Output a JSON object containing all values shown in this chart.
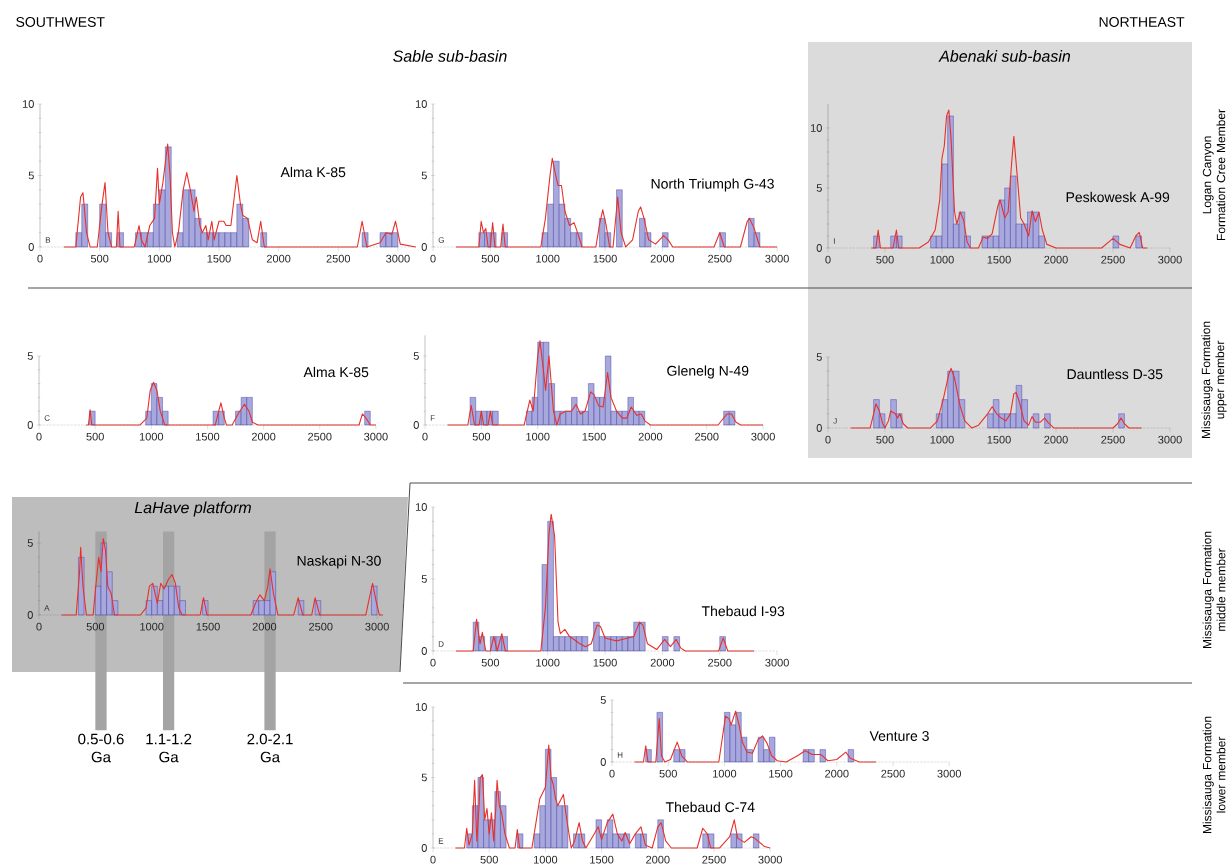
{
  "chart_data": [
    {
      "type": "bar",
      "title": "Alma K-85",
      "subtitle": "B",
      "annotations": [
        "SOUTHWEST",
        "Sable sub-basin"
      ],
      "xlim": [
        0,
        3150
      ],
      "xticks": [
        0,
        500,
        1000,
        1500,
        2000,
        2500,
        3000
      ],
      "ylim": [
        0,
        10
      ],
      "yticks": [
        0,
        5,
        10
      ],
      "series": [
        {
          "color": "#a8a8dc",
          "x": [
            325,
            375,
            525,
            575,
            675,
            825,
            875,
            925,
            975,
            1025,
            1075,
            1175,
            1225,
            1275,
            1325,
            1375,
            1425,
            1475,
            1525,
            1575,
            1625,
            1675,
            1725,
            1875,
            2725,
            2875,
            2925,
            2975
          ],
          "values": [
            1,
            3,
            3,
            1,
            1,
            1,
            1,
            1,
            3,
            4,
            7,
            1,
            4,
            4,
            2,
            1,
            1,
            1,
            1,
            1,
            1,
            3,
            2,
            1,
            1,
            1,
            1,
            1
          ]
        },
        {
          "type": "line",
          "color": "#e8302a",
          "x": [
            200,
            300,
            340,
            360,
            390,
            420,
            480,
            520,
            545,
            570,
            600,
            640,
            655,
            670,
            790,
            830,
            850,
            880,
            920,
            960,
            985,
            1000,
            1030,
            1070,
            1090,
            1110,
            1130,
            1160,
            1200,
            1230,
            1260,
            1290,
            1310,
            1340,
            1360,
            1390,
            1410,
            1440,
            1460,
            1500,
            1540,
            1560,
            1600,
            1650,
            1680,
            1700,
            1740,
            1780,
            1820,
            1850,
            1880,
            2660,
            2700,
            2740,
            2850,
            2900,
            2950,
            2980,
            3020,
            3150
          ],
          "values": [
            0,
            0,
            3.5,
            3.8,
            1,
            0,
            0,
            3,
            4.5,
            1,
            0,
            0,
            2.5,
            0,
            0,
            1.5,
            0.5,
            0,
            1.5,
            2,
            5.5,
            3,
            4.5,
            7.2,
            5,
            1,
            0,
            1,
            4,
            5.2,
            4,
            2.5,
            3.5,
            1.5,
            1,
            1.5,
            0.5,
            1.8,
            0.5,
            1.8,
            1.8,
            1.5,
            1.5,
            5,
            3,
            2.2,
            2,
            0.5,
            0.3,
            1.8,
            0,
            0,
            1.8,
            0,
            0.3,
            1,
            0.9,
            1.8,
            0.2,
            0
          ]
        }
      ]
    },
    {
      "type": "bar",
      "title": "North Triumph G-43",
      "subtitle": "G",
      "xlim": [
        0,
        3000
      ],
      "xticks": [
        0,
        500,
        1000,
        1500,
        2000,
        2500,
        3000
      ],
      "ylim": [
        0,
        10
      ],
      "yticks": [
        0,
        5,
        10
      ],
      "series": [
        {
          "color": "#a8a8dc",
          "x": [
            425,
            475,
            525,
            625,
            975,
            1025,
            1075,
            1125,
            1175,
            1225,
            1275,
            1475,
            1525,
            1625,
            1825,
            1875,
            2025,
            2525,
            2775,
            2825
          ],
          "values": [
            1,
            1,
            1,
            1,
            1,
            3,
            6,
            3,
            2,
            1,
            1,
            2,
            1,
            4,
            2,
            1,
            1,
            1,
            2,
            1
          ]
        },
        {
          "type": "line",
          "color": "#e8302a",
          "x": [
            200,
            400,
            420,
            440,
            460,
            480,
            500,
            520,
            540,
            590,
            610,
            630,
            940,
            980,
            1020,
            1040,
            1070,
            1090,
            1120,
            1150,
            1190,
            1230,
            1260,
            1300,
            1420,
            1450,
            1480,
            1510,
            1540,
            1570,
            1610,
            1640,
            1680,
            1740,
            1790,
            1810,
            1840,
            1880,
            1940,
            2010,
            2050,
            2090,
            2450,
            2500,
            2540,
            2680,
            2740,
            2760,
            2800,
            2850,
            3000
          ],
          "values": [
            0,
            0,
            1.8,
            1,
            1.3,
            0,
            0,
            1.7,
            0,
            0,
            1.6,
            0,
            0,
            2,
            5,
            6.2,
            5,
            4.3,
            4.3,
            2.5,
            1.5,
            1.7,
            1,
            0,
            0,
            1.5,
            2.6,
            1.5,
            0,
            0,
            3.5,
            1,
            0,
            0.5,
            2.5,
            2.8,
            2,
            0.5,
            0.2,
            0.8,
            0.5,
            0,
            0,
            1,
            0,
            0,
            1.8,
            2,
            1.3,
            0,
            0
          ]
        }
      ]
    },
    {
      "type": "bar",
      "title": "Peskowesk A-99",
      "subtitle": "I",
      "annotations": [
        "NORTHEAST",
        "Abenaki sub-basin",
        "Logan Canyon Formation Cree Member"
      ],
      "xlim": [
        0,
        3000
      ],
      "xticks": [
        0,
        500,
        1000,
        1500,
        2000,
        2500,
        3000
      ],
      "ylim": [
        0,
        12
      ],
      "yticks": [
        0,
        5,
        10
      ],
      "series": [
        {
          "color": "#a8a8dc",
          "x": [
            425,
            575,
            625,
            925,
            975,
            1025,
            1075,
            1125,
            1175,
            1225,
            1375,
            1425,
            1475,
            1525,
            1575,
            1625,
            1675,
            1725,
            1775,
            1825,
            1875,
            2525,
            2725
          ],
          "values": [
            1,
            1,
            1,
            1,
            1,
            7,
            11,
            2,
            3,
            1,
            1,
            1,
            1,
            4,
            5,
            6,
            2,
            2,
            3,
            3,
            1,
            1,
            1
          ]
        },
        {
          "type": "line",
          "color": "#e8302a",
          "x": [
            380,
            420,
            440,
            460,
            570,
            600,
            620,
            800,
            880,
            940,
            980,
            1000,
            1020,
            1040,
            1060,
            1080,
            1110,
            1130,
            1160,
            1190,
            1220,
            1250,
            1320,
            1360,
            1400,
            1440,
            1490,
            1510,
            1550,
            1580,
            1610,
            1630,
            1660,
            1690,
            1720,
            1760,
            1790,
            1820,
            1850,
            1880,
            1920,
            2000,
            2400,
            2500,
            2560,
            2650,
            2700,
            2730,
            2760,
            2800
          ],
          "values": [
            0,
            0,
            1.5,
            0,
            0,
            1.5,
            0,
            0,
            0.5,
            1.5,
            4,
            7.5,
            8.5,
            11,
            11.5,
            9,
            3,
            2,
            3,
            2.3,
            0.5,
            0,
            0,
            0.9,
            0.8,
            1.2,
            3.5,
            4,
            2.5,
            3,
            7,
            9.3,
            6,
            2.5,
            2,
            1,
            3.1,
            2.2,
            3,
            1.5,
            0.3,
            0,
            0,
            0.8,
            0.3,
            0,
            1,
            1.3,
            0,
            0
          ]
        }
      ]
    },
    {
      "type": "bar",
      "title": "Alma K-85",
      "subtitle": "C",
      "xlim": [
        0,
        3000
      ],
      "xticks": [
        0,
        500,
        1000,
        1500,
        2000,
        2500,
        3000
      ],
      "ylim": [
        0,
        5
      ],
      "yticks": [
        0,
        5
      ],
      "series": [
        {
          "color": "#a8a8dc",
          "x": [
            475,
            975,
            1025,
            1075,
            1125,
            1575,
            1625,
            1775,
            1825,
            1875,
            2925
          ],
          "values": [
            1,
            1,
            3,
            2,
            1,
            1,
            1,
            1,
            2,
            2,
            1
          ]
        },
        {
          "type": "line",
          "color": "#e8302a",
          "x": [
            420,
            440,
            455,
            470,
            900,
            960,
            990,
            1020,
            1050,
            1080,
            1120,
            1570,
            1600,
            1620,
            1650,
            1670,
            1720,
            1780,
            1830,
            1870,
            1900,
            1950,
            2850,
            2880,
            2920,
            2950,
            3000
          ],
          "values": [
            0,
            0,
            1.1,
            0,
            0,
            0.5,
            2.5,
            3.1,
            2.5,
            1,
            0,
            0,
            1,
            1.6,
            0.5,
            0,
            0,
            0.9,
            1.5,
            1,
            0.2,
            0,
            0,
            0.8,
            0.4,
            0,
            0
          ]
        }
      ]
    },
    {
      "type": "bar",
      "title": "Glenelg N-49",
      "subtitle": "F",
      "xlim": [
        0,
        3000
      ],
      "xticks": [
        0,
        500,
        1000,
        1500,
        2000,
        2500,
        3000
      ],
      "ylim": [
        0,
        6.5
      ],
      "yticks": [
        0,
        5
      ],
      "series": [
        {
          "color": "#a8a8dc",
          "x": [
            425,
            475,
            525,
            575,
            625,
            925,
            975,
            1025,
            1075,
            1125,
            1175,
            1225,
            1275,
            1325,
            1375,
            1425,
            1475,
            1525,
            1575,
            1625,
            1675,
            1725,
            1775,
            1825,
            1875,
            1925,
            2675,
            2725
          ],
          "values": [
            2,
            1,
            1,
            1,
            1,
            1,
            2,
            6,
            6,
            3,
            1,
            1,
            1,
            2,
            1,
            1,
            3,
            2,
            2,
            5,
            1,
            1,
            1,
            2,
            1,
            1,
            1,
            1
          ]
        },
        {
          "type": "line",
          "color": "#e8302a",
          "x": [
            200,
            380,
            410,
            440,
            480,
            500,
            520,
            560,
            580,
            600,
            880,
            930,
            960,
            1000,
            1020,
            1050,
            1070,
            1100,
            1120,
            1140,
            1170,
            1200,
            1250,
            1300,
            1340,
            1380,
            1420,
            1470,
            1500,
            1540,
            1580,
            1620,
            1650,
            1700,
            1750,
            1790,
            1830,
            1880,
            1920,
            1950,
            2000,
            2600,
            2680,
            2720,
            2760,
            2800,
            3000
          ],
          "values": [
            0,
            0,
            1.4,
            0,
            0,
            1,
            0,
            0,
            1,
            0,
            0,
            1.8,
            1,
            5,
            6.1,
            4,
            2.5,
            5,
            3,
            1,
            0,
            0.8,
            1,
            1,
            1.5,
            0.8,
            1,
            2.4,
            2.2,
            1.4,
            1.3,
            3.8,
            2,
            1,
            0.5,
            0.5,
            1.3,
            0.7,
            0.8,
            0.3,
            0,
            0,
            0.8,
            0.8,
            0.2,
            0,
            0
          ]
        }
      ]
    },
    {
      "type": "bar",
      "title": "Dauntless D-35",
      "subtitle": "J",
      "annotations": [
        "Missisauga Formation upper member"
      ],
      "xlim": [
        0,
        3000
      ],
      "xticks": [
        0,
        500,
        1000,
        1500,
        2000,
        2500,
        3000
      ],
      "ylim": [
        0,
        5
      ],
      "yticks": [
        0,
        5
      ],
      "series": [
        {
          "color": "#a8a8dc",
          "x": [
            425,
            475,
            575,
            625,
            975,
            1025,
            1075,
            1125,
            1175,
            1425,
            1475,
            1525,
            1575,
            1625,
            1675,
            1725,
            1825,
            1925,
            2575
          ],
          "values": [
            2,
            1,
            2,
            1,
            1,
            2,
            4,
            4,
            2,
            1,
            2,
            1,
            1,
            1,
            3,
            2,
            1,
            1,
            1
          ]
        },
        {
          "type": "line",
          "color": "#e8302a",
          "x": [
            200,
            370,
            400,
            420,
            450,
            480,
            500,
            530,
            550,
            590,
            610,
            630,
            660,
            700,
            900,
            960,
            1010,
            1060,
            1080,
            1110,
            1160,
            1200,
            1260,
            1320,
            1400,
            1440,
            1480,
            1520,
            1560,
            1600,
            1630,
            1650,
            1680,
            1720,
            1760,
            1790,
            1820,
            1860,
            1900,
            1930,
            1980,
            2500,
            2540,
            2570,
            2600,
            2640,
            2750
          ],
          "values": [
            0,
            0,
            1,
            1.7,
            1.2,
            0.3,
            0,
            0.5,
            1.2,
            1,
            0.7,
            1,
            0.3,
            0,
            0,
            0.5,
            2,
            3.8,
            4.2,
            3.5,
            1.5,
            0.5,
            0,
            0.2,
            1,
            1.5,
            1,
            0.7,
            0.5,
            1,
            2.4,
            2.5,
            1.8,
            0.5,
            0.2,
            0.8,
            0.4,
            0.4,
            0.7,
            0.4,
            0,
            0,
            0.3,
            0.7,
            0.3,
            0,
            0
          ]
        }
      ]
    },
    {
      "type": "bar",
      "title": "Naskapi N-30",
      "subtitle": "A",
      "annotations": [
        "LaHave platform"
      ],
      "xlim": [
        0,
        3050
      ],
      "xticks": [
        0,
        500,
        1000,
        1500,
        2000,
        2500,
        3000
      ],
      "ylim": [
        0,
        5.8
      ],
      "yticks": [
        0,
        5
      ],
      "bands": [
        {
          "axis": "x",
          "from": 500,
          "to": 600,
          "label": "0.5-0.6 Ga",
          "color": "#a4a4a4"
        },
        {
          "axis": "x",
          "from": 1100,
          "to": 1200,
          "label": "1.1-1.2 Ga",
          "color": "#a4a4a4"
        },
        {
          "axis": "x",
          "from": 2000,
          "to": 2100,
          "label": "2.0-2.1 Ga",
          "color": "#a4a4a4"
        }
      ],
      "series": [
        {
          "color": "#a8a8dc",
          "x": [
            375,
            525,
            575,
            625,
            675,
            975,
            1025,
            1075,
            1125,
            1175,
            1225,
            1275,
            1475,
            1925,
            1975,
            2025,
            2075,
            2325,
            2475,
            2975
          ],
          "values": [
            4,
            2,
            5,
            3,
            1,
            1,
            2,
            1,
            2,
            2,
            2,
            1,
            1,
            1,
            1,
            1,
            3,
            1,
            1,
            2
          ]
        },
        {
          "type": "line",
          "color": "#e8302a",
          "x": [
            200,
            330,
            360,
            370,
            390,
            420,
            480,
            510,
            530,
            550,
            570,
            590,
            610,
            640,
            670,
            900,
            950,
            980,
            1010,
            1050,
            1080,
            1110,
            1150,
            1180,
            1210,
            1240,
            1270,
            1430,
            1460,
            1490,
            1880,
            1920,
            1960,
            2000,
            2030,
            2050,
            2080,
            2120,
            2260,
            2300,
            2340,
            2420,
            2450,
            2490,
            2900,
            2940,
            2960,
            2990,
            3020,
            3050
          ],
          "values": [
            0,
            0,
            3,
            4.7,
            2,
            0,
            0,
            2.5,
            4,
            3,
            5.3,
            4.5,
            2,
            1.5,
            0,
            0,
            0.5,
            2,
            2.2,
            0.8,
            2.2,
            1.8,
            2.5,
            2.8,
            2.2,
            0.5,
            0,
            0,
            1.2,
            0,
            0,
            0.8,
            1.4,
            1,
            2,
            3.2,
            1.5,
            0,
            0,
            1.2,
            0,
            0,
            1.2,
            0,
            0,
            1.5,
            2.2,
            1,
            0,
            0
          ]
        }
      ]
    },
    {
      "type": "bar",
      "title": "Thebaud I-93",
      "subtitle": "D",
      "annotations": [
        "Missisauga Formation middle member"
      ],
      "xlim": [
        0,
        3000
      ],
      "xticks": [
        0,
        500,
        1000,
        1500,
        2000,
        2500,
        3000
      ],
      "ylim": [
        0,
        10
      ],
      "yticks": [
        0,
        5,
        10
      ],
      "series": [
        {
          "color": "#a8a8dc",
          "x": [
            375,
            425,
            525,
            575,
            625,
            975,
            1025,
            1075,
            1125,
            1175,
            1225,
            1275,
            1325,
            1425,
            1475,
            1525,
            1575,
            1625,
            1675,
            1725,
            1775,
            1825,
            2025,
            2125,
            2525
          ],
          "values": [
            2,
            1,
            1,
            1,
            1,
            6,
            9,
            1,
            1,
            1,
            1,
            1,
            1,
            2,
            1,
            1,
            1,
            1,
            1,
            1,
            2,
            2,
            1,
            1,
            1
          ]
        },
        {
          "type": "line",
          "color": "#e8302a",
          "x": [
            200,
            350,
            380,
            410,
            430,
            460,
            500,
            530,
            560,
            600,
            630,
            940,
            980,
            1010,
            1030,
            1060,
            1090,
            1110,
            1150,
            1190,
            1230,
            1280,
            1330,
            1380,
            1430,
            1460,
            1500,
            1550,
            1600,
            1650,
            1700,
            1750,
            1800,
            1830,
            1870,
            1950,
            2020,
            2070,
            2120,
            2160,
            2200,
            2490,
            2530,
            2570,
            2800
          ],
          "values": [
            0,
            0,
            2.2,
            0.5,
            1.3,
            0,
            0,
            1,
            0,
            1.2,
            0,
            0,
            3,
            8,
            9.5,
            8,
            2,
            1.2,
            1.5,
            1,
            0.8,
            0.5,
            0.3,
            0.5,
            1.8,
            1.7,
            0.9,
            0.8,
            0.7,
            0.8,
            0.9,
            1,
            2,
            1.8,
            0.5,
            0.1,
            0.8,
            0.3,
            0.8,
            0.2,
            0,
            0,
            0.9,
            0,
            0
          ]
        }
      ]
    },
    {
      "type": "bar",
      "title": "Thebaud C-74",
      "subtitle": "E",
      "annotations": [
        "Missisauga Formation lower member"
      ],
      "xlim": [
        0,
        3000
      ],
      "xticks": [
        0,
        500,
        1000,
        1500,
        2000,
        2500,
        3000
      ],
      "ylim": [
        0,
        10
      ],
      "yticks": [
        0,
        5,
        10
      ],
      "series": [
        {
          "color": "#a8a8dc",
          "x": [
            325,
            375,
            425,
            475,
            525,
            575,
            625,
            775,
            925,
            975,
            1025,
            1075,
            1125,
            1175,
            1275,
            1325,
            1475,
            1525,
            1575,
            1625,
            1675,
            1725,
            1825,
            1875,
            2025,
            2425,
            2475,
            2675,
            2725,
            2875
          ],
          "values": [
            1,
            3,
            5,
            2,
            2,
            4,
            3,
            1,
            1,
            3,
            7,
            5,
            3,
            3,
            1,
            1,
            2,
            1,
            2,
            1,
            1,
            1,
            1,
            1,
            2,
            1,
            1,
            1,
            1,
            1
          ]
        },
        {
          "type": "line",
          "color": "#e8302a",
          "x": [
            200,
            280,
            300,
            320,
            350,
            370,
            390,
            410,
            420,
            440,
            460,
            480,
            500,
            520,
            540,
            560,
            570,
            590,
            610,
            640,
            680,
            730,
            750,
            770,
            880,
            950,
            1000,
            1030,
            1050,
            1070,
            1090,
            1110,
            1160,
            1190,
            1230,
            1260,
            1300,
            1330,
            1360,
            1420,
            1470,
            1500,
            1550,
            1600,
            1640,
            1680,
            1710,
            1750,
            1800,
            1850,
            1890,
            1950,
            2000,
            2030,
            2070,
            2120,
            2350,
            2400,
            2440,
            2470,
            2550,
            2640,
            2680,
            2710,
            2770,
            2830,
            2860,
            2950,
            3000
          ],
          "values": [
            0,
            0,
            1.4,
            0.2,
            1,
            4.8,
            0.5,
            3,
            5,
            5.2,
            2,
            2.8,
            1,
            2.5,
            0.5,
            3,
            4.8,
            3,
            2.5,
            1,
            0,
            0,
            1.3,
            0,
            0,
            3.5,
            4.3,
            7.3,
            5,
            4.5,
            3.5,
            3,
            3.8,
            2,
            0,
            0.5,
            1.8,
            0.5,
            0,
            0.8,
            1.5,
            0.6,
            1.8,
            2.4,
            1,
            0.5,
            1.1,
            0.3,
            1,
            1.5,
            0.2,
            0,
            1.5,
            1.8,
            0.5,
            0,
            0,
            1.4,
            1,
            0,
            0,
            0.8,
            2,
            0.7,
            0.4,
            0.8,
            0.7,
            0.1,
            0
          ]
        }
      ]
    },
    {
      "type": "bar",
      "title": "Venture 3",
      "subtitle": "H",
      "xlim": [
        0,
        3000
      ],
      "xticks": [
        0,
        500,
        1000,
        1500,
        2000,
        2500,
        3000
      ],
      "ylim": [
        0,
        5
      ],
      "yticks": [
        0,
        5
      ],
      "series": [
        {
          "color": "#a8a8dc",
          "x": [
            325,
            425,
            575,
            625,
            1025,
            1075,
            1125,
            1175,
            1225,
            1325,
            1375,
            1425,
            1725,
            1775,
            1875,
            2125
          ],
          "values": [
            1,
            4,
            1,
            1,
            4,
            3,
            4,
            2,
            1,
            2,
            1,
            2,
            1,
            1,
            1,
            1
          ]
        },
        {
          "type": "line",
          "color": "#e8302a",
          "x": [
            200,
            280,
            300,
            320,
            390,
            420,
            440,
            470,
            520,
            580,
            620,
            670,
            950,
            1010,
            1040,
            1060,
            1100,
            1130,
            1160,
            1200,
            1250,
            1300,
            1340,
            1380,
            1420,
            1470,
            1550,
            1650,
            1720,
            1780,
            1860,
            1920,
            2000,
            2080,
            2120,
            2200,
            2350
          ],
          "values": [
            0,
            0,
            1.3,
            0,
            0,
            3.5,
            0.5,
            0,
            0.2,
            1.6,
            0.5,
            0,
            0,
            3.7,
            3.5,
            3,
            4.1,
            3,
            1.6,
            0.8,
            0.7,
            1.8,
            2.1,
            1.5,
            0.5,
            0.1,
            0,
            0.5,
            0.9,
            0.6,
            0.6,
            0.1,
            0.2,
            0.8,
            0.3,
            0,
            0
          ]
        }
      ]
    }
  ]
}
